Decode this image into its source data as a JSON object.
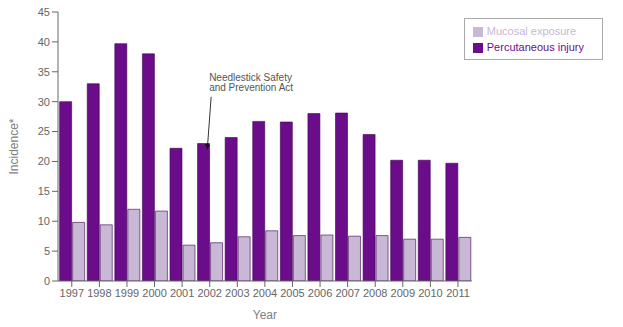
{
  "chart_data": {
    "type": "bar",
    "categories": [
      "1997",
      "1998",
      "1999",
      "2000",
      "2001",
      "2002",
      "2003",
      "2004",
      "2005",
      "2006",
      "2007",
      "2008",
      "2009",
      "2010",
      "2011"
    ],
    "series": [
      {
        "name": "Percutaneous injury",
        "color": "#6B0D8A",
        "values": [
          30.0,
          33.0,
          39.7,
          38.0,
          22.2,
          23.0,
          24.0,
          26.7,
          26.6,
          28.0,
          28.1,
          24.5,
          20.2,
          20.2,
          19.7
        ]
      },
      {
        "name": "Mucosal exposure",
        "color": "#C8B8D5",
        "values": [
          9.8,
          9.4,
          12.0,
          11.7,
          6.0,
          6.4,
          7.4,
          8.4,
          7.6,
          7.7,
          7.5,
          7.6,
          7.0,
          7.0,
          7.3
        ]
      }
    ],
    "xlabel": "Year",
    "ylabel": "Incidence*",
    "ylim": [
      0,
      45
    ],
    "yticks": [
      0,
      5,
      10,
      15,
      20,
      25,
      30,
      35,
      40,
      45
    ],
    "annotation": "Needlestick Safety\nand Prevention Act",
    "legend": "upper right",
    "grid": false
  }
}
